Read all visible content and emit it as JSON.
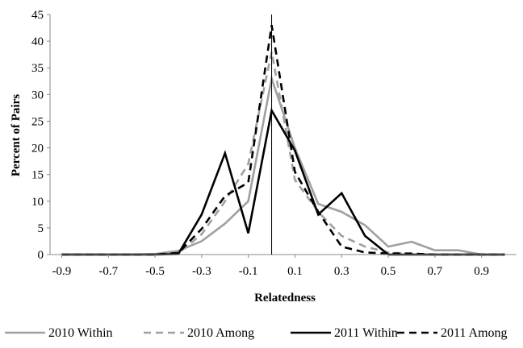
{
  "chart_data": {
    "type": "line",
    "title": "",
    "xlabel": "Relatedness",
    "ylabel": "Percent of Pairs",
    "xlim": [
      -0.95,
      1.05
    ],
    "ylim": [
      0,
      45
    ],
    "x_ticks": [
      "-0.9",
      "-0.7",
      "-0.5",
      "-0.3",
      "-0.1",
      "0.1",
      "0.3",
      "0.5",
      "0.7",
      "0.9"
    ],
    "y_ticks": [
      "0",
      "5",
      "10",
      "15",
      "20",
      "25",
      "30",
      "35",
      "40",
      "45"
    ],
    "x_tick_values": [
      -0.9,
      -0.7,
      -0.5,
      -0.3,
      -0.1,
      0.1,
      0.3,
      0.5,
      0.7,
      0.9
    ],
    "y_tick_values": [
      0,
      5,
      10,
      15,
      20,
      25,
      30,
      35,
      40,
      45
    ],
    "reference_line_x": 0.0,
    "grid": false,
    "legend_position": "bottom",
    "series": [
      {
        "name": "2010 Within",
        "color": "#a0a0a0",
        "dash": "solid",
        "x": [
          -0.9,
          -0.8,
          -0.7,
          -0.6,
          -0.5,
          -0.4,
          -0.3,
          -0.2,
          -0.1,
          0.0,
          0.1,
          0.2,
          0.3,
          0.4,
          0.5,
          0.6,
          0.7,
          0.8,
          0.9,
          1.0
        ],
        "values": [
          0,
          0,
          0,
          0,
          0.1,
          0.7,
          2.5,
          5.8,
          10,
          33,
          20,
          9.5,
          8,
          5.5,
          1.5,
          2.4,
          0.8,
          0.8,
          0,
          0
        ]
      },
      {
        "name": "2010 Among",
        "color": "#a0a0a0",
        "dash": "dashed",
        "x": [
          -0.9,
          -0.8,
          -0.7,
          -0.6,
          -0.5,
          -0.4,
          -0.3,
          -0.2,
          -0.1,
          0.0,
          0.1,
          0.2,
          0.3,
          0.4,
          0.5,
          0.6,
          0.7,
          0.8,
          0.9,
          1.0
        ],
        "values": [
          0,
          0,
          0,
          0,
          0,
          0.2,
          3.8,
          10,
          17,
          38,
          14,
          8,
          3.5,
          1.5,
          0.4,
          0.1,
          0,
          0,
          0,
          0
        ]
      },
      {
        "name": "2011 Within",
        "color": "#000000",
        "dash": "solid",
        "x": [
          -0.9,
          -0.8,
          -0.7,
          -0.6,
          -0.5,
          -0.4,
          -0.3,
          -0.2,
          -0.1,
          0.0,
          0.1,
          0.2,
          0.3,
          0.4,
          0.5,
          0.6,
          0.7,
          0.8,
          0.9,
          1.0
        ],
        "values": [
          0,
          0,
          0,
          0,
          0,
          0.1,
          7.5,
          19,
          4,
          27,
          19.5,
          7.5,
          11.5,
          3.5,
          0,
          0,
          0,
          0,
          0,
          0
        ]
      },
      {
        "name": "2011 Among",
        "color": "#000000",
        "dash": "dashed",
        "x": [
          -0.9,
          -0.8,
          -0.7,
          -0.6,
          -0.5,
          -0.4,
          -0.3,
          -0.2,
          -0.1,
          0.0,
          0.1,
          0.2,
          0.3,
          0.4,
          0.5,
          0.6,
          0.7,
          0.8,
          0.9,
          1.0
        ],
        "values": [
          0,
          0,
          0,
          0,
          0,
          0.3,
          4.8,
          11,
          13.5,
          43,
          15.5,
          8,
          1.5,
          0.4,
          0.2,
          0.2,
          0,
          0,
          0,
          0
        ]
      }
    ]
  }
}
